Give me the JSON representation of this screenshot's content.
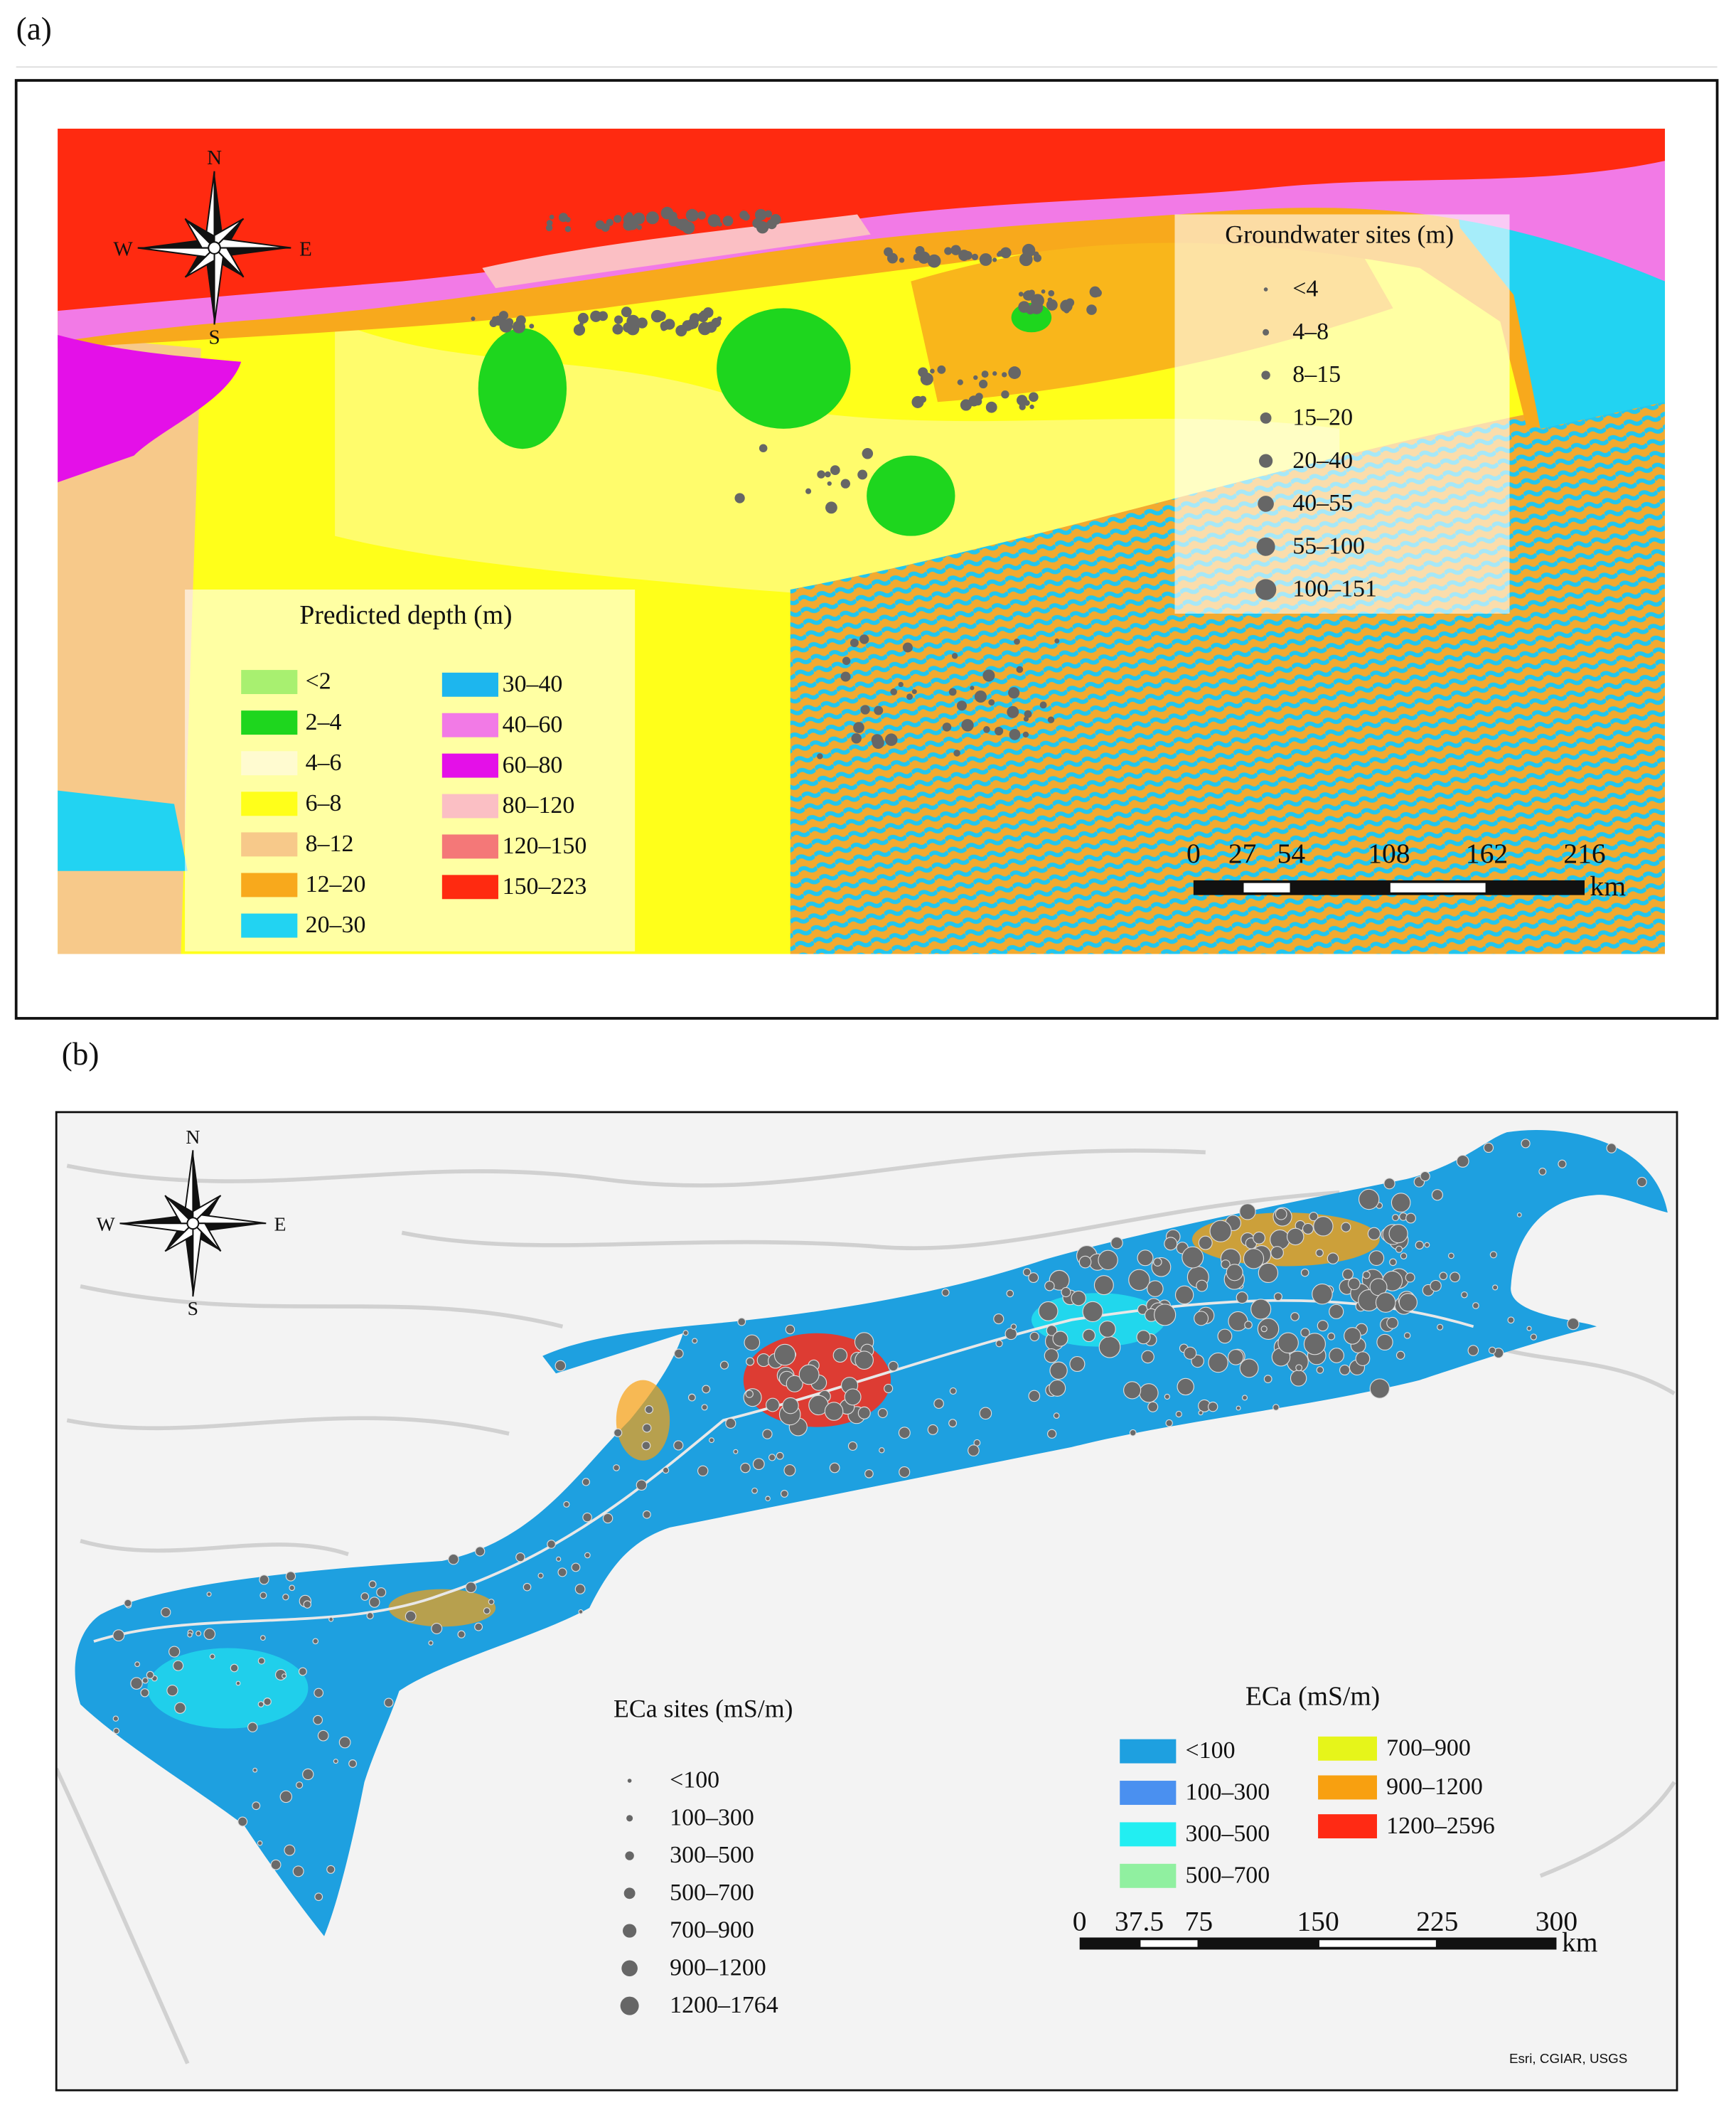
{
  "panels": [
    {
      "label": "(a)",
      "compass": {
        "n": "N",
        "s": "S",
        "e": "E",
        "w": "W"
      },
      "raster_legend": {
        "title": "Predicted depth (m)",
        "items": [
          {
            "label": "<2",
            "color": "#a8f070"
          },
          {
            "label": "2–4",
            "color": "#1ed61e"
          },
          {
            "label": "4–6",
            "color": "#fffbd0"
          },
          {
            "label": "6–8",
            "color": "#ffff1a"
          },
          {
            "label": "8–12",
            "color": "#f7c98a"
          },
          {
            "label": "12–20",
            "color": "#f8a91c"
          },
          {
            "label": "20–30",
            "color": "#22d3f2"
          },
          {
            "label": "30–40",
            "color": "#1db6ee"
          },
          {
            "label": "40–60",
            "color": "#f27ae6"
          },
          {
            "label": "60–80",
            "color": "#e410e8"
          },
          {
            "label": "80–120",
            "color": "#fbbfc4"
          },
          {
            "label": "120–150",
            "color": "#f47878"
          },
          {
            "label": "150–223",
            "color": "#ff2a10"
          }
        ]
      },
      "sites_legend": {
        "title": "Groundwater sites (m)",
        "color": "#666666",
        "items": [
          "<4",
          "4–8",
          "8–15",
          "15–20",
          "20–40",
          "40–55",
          "55–100",
          "100–151"
        ]
      },
      "scale_bar": {
        "ticks": [
          0,
          27,
          54,
          108,
          162,
          216
        ],
        "unit": "km"
      }
    },
    {
      "label": "(b)",
      "compass": {
        "n": "N",
        "s": "S",
        "e": "E",
        "w": "W"
      },
      "sites_legend": {
        "title": "ECa sites (mS/m)",
        "color": "#666666",
        "items": [
          "<100",
          "100–300",
          "300–500",
          "500–700",
          "700–900",
          "900–1200",
          "1200–1764"
        ]
      },
      "raster_legend": {
        "title": "ECa (mS/m)",
        "items": [
          {
            "label": "<100",
            "color": "#1ea0e0"
          },
          {
            "label": "100–300",
            "color": "#4a90f0"
          },
          {
            "label": "300–500",
            "color": "#22eef2"
          },
          {
            "label": "500–700",
            "color": "#90f0a0"
          },
          {
            "label": "700–900",
            "color": "#e6f51a"
          },
          {
            "label": "900–1200",
            "color": "#f8a010"
          },
          {
            "label": "1200–2596",
            "color": "#ff2a14"
          }
        ]
      },
      "scale_bar": {
        "ticks": [
          0,
          37.5,
          75,
          150,
          225,
          300
        ],
        "unit": "km"
      },
      "attribution": "Esri, CGIAR, USGS"
    }
  ]
}
